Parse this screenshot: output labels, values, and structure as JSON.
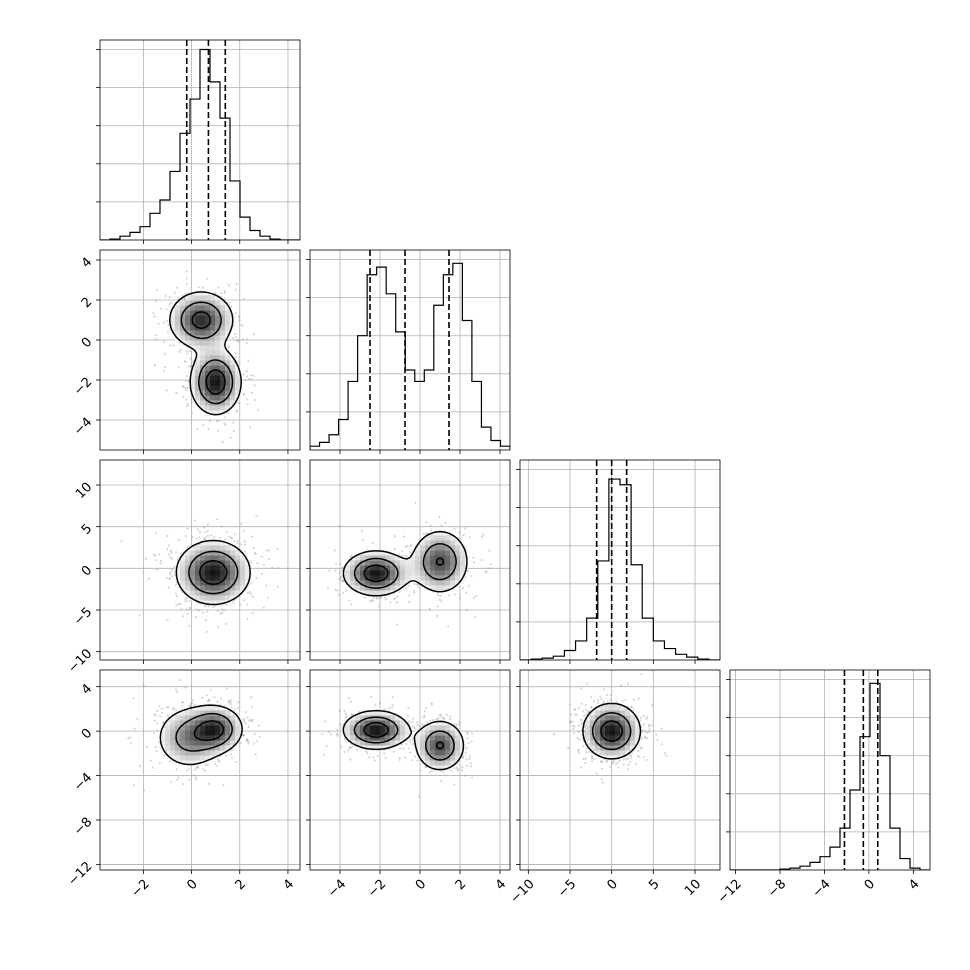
{
  "chart_data": {
    "type": "corner",
    "grid": true,
    "parameters": [
      {
        "range": [
          -3.8,
          4.5
        ],
        "ticks": [
          -2,
          0,
          2,
          4
        ],
        "tick_labels": [
          "−2",
          "0",
          "2",
          "4"
        ],
        "quantiles": [
          -0.2,
          0.7,
          1.4
        ],
        "hist": [
          0.0,
          0.005,
          0.02,
          0.04,
          0.07,
          0.14,
          0.21,
          0.36,
          0.56,
          0.74,
          1.0,
          0.83,
          0.64,
          0.31,
          0.12,
          0.05,
          0.02,
          0.005,
          0.0,
          0.0
        ],
        "modes": [
          {
            "w": 1,
            "m": 0.7,
            "s": 0.75
          }
        ]
      },
      {
        "range": [
          -5.5,
          4.5
        ],
        "ticks": [
          -4,
          -2,
          0,
          2,
          4
        ],
        "tick_labels": [
          "−4",
          "−2",
          "0",
          "2",
          "4"
        ],
        "quantiles": [
          -2.5,
          -0.75,
          1.45
        ],
        "hist": [
          0.02,
          0.04,
          0.08,
          0.16,
          0.36,
          0.6,
          0.92,
          0.96,
          0.82,
          0.62,
          0.42,
          0.36,
          0.42,
          0.76,
          0.92,
          0.98,
          0.68,
          0.36,
          0.12,
          0.05,
          0.02
        ],
        "modes": [
          {
            "w": 1,
            "m": -2.3,
            "s": 0.75
          },
          {
            "w": 0.92,
            "m": 1.1,
            "s": 0.7
          }
        ]
      },
      {
        "range": [
          -11.0,
          13.0
        ],
        "ticks": [
          -10,
          -5,
          0,
          5,
          10
        ],
        "tick_labels": [
          "−10",
          "−5",
          "0",
          "5",
          "10"
        ],
        "quantiles": [
          -1.8,
          0.0,
          1.8
        ],
        "hist": [
          0.0,
          0.005,
          0.01,
          0.02,
          0.05,
          0.1,
          0.22,
          0.52,
          0.95,
          0.92,
          0.5,
          0.22,
          0.1,
          0.06,
          0.03,
          0.015,
          0.005,
          0.0
        ],
        "modes": [
          {
            "w": 1,
            "m": -0.2,
            "s": 2.0
          }
        ]
      },
      {
        "range": [
          -12.5,
          5.5
        ],
        "ticks": [
          -12,
          -8,
          -4,
          0,
          4
        ],
        "tick_labels": [
          "−12",
          "−8",
          "−4",
          "0",
          "4"
        ],
        "quantiles": [
          -2.2,
          -0.5,
          0.8
        ],
        "hist": [
          0.0,
          0.0,
          0.0,
          0.0,
          0.0,
          0.005,
          0.01,
          0.02,
          0.04,
          0.07,
          0.12,
          0.22,
          0.42,
          0.7,
          0.98,
          0.6,
          0.22,
          0.06,
          0.01,
          0.0
        ],
        "modes": [
          {
            "w": 1,
            "m": -0.2,
            "s": 1.3
          }
        ]
      }
    ],
    "panels_2d": [
      {
        "row": 1,
        "col": 0,
        "blobs": [
          {
            "mx": 0.4,
            "my": 1.0,
            "sx": 0.7,
            "sy": 0.75,
            "w": 0.9
          },
          {
            "mx": 1.0,
            "my": -2.1,
            "sx": 0.55,
            "sy": 0.85,
            "w": 1.0
          }
        ]
      },
      {
        "row": 2,
        "col": 0,
        "blobs": [
          {
            "mx": 0.9,
            "my": -0.5,
            "sx": 0.8,
            "sy": 2.0,
            "w": 1.0
          }
        ]
      },
      {
        "row": 2,
        "col": 1,
        "blobs": [
          {
            "mx": -2.2,
            "my": -0.6,
            "sx": 0.85,
            "sy": 1.4,
            "w": 1.0
          },
          {
            "mx": 1.0,
            "my": 0.8,
            "sx": 0.75,
            "sy": 2.0,
            "w": 0.8
          }
        ]
      },
      {
        "row": 3,
        "col": 0,
        "blobs": [
          {
            "mx": 1.0,
            "my": 0.2,
            "sx": 0.6,
            "sy": 1.1,
            "w": 1.0
          },
          {
            "mx": -0.1,
            "my": -0.6,
            "sx": 0.75,
            "sy": 1.5,
            "w": 0.7
          }
        ]
      },
      {
        "row": 3,
        "col": 1,
        "blobs": [
          {
            "mx": -2.2,
            "my": 0.1,
            "sx": 0.85,
            "sy": 0.9,
            "w": 1.0
          },
          {
            "mx": 1.0,
            "my": -1.3,
            "sx": 0.65,
            "sy": 1.2,
            "w": 0.8
          }
        ]
      },
      {
        "row": 3,
        "col": 2,
        "blobs": [
          {
            "mx": 0.0,
            "my": 0.0,
            "sx": 1.8,
            "sy": 1.3,
            "w": 1.0
          }
        ]
      }
    ],
    "contour_levels": [
      0.16,
      0.45,
      0.78
    ],
    "density_grid": 16
  }
}
